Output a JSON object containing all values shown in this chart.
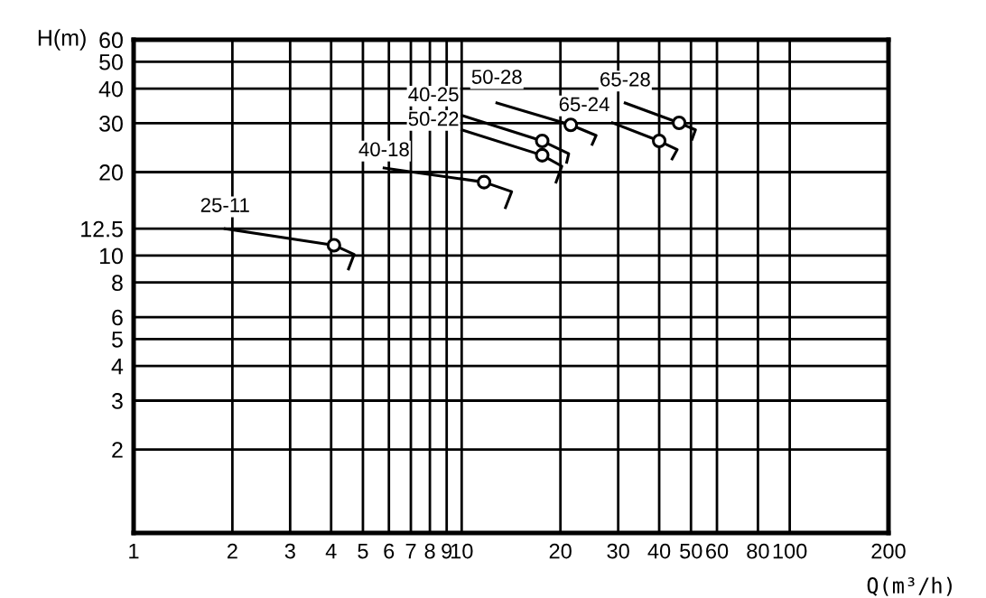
{
  "chart_data": {
    "type": "line",
    "xlabel": "Q(m³/h)",
    "ylabel": "H(m)",
    "log": "xy",
    "grid": true,
    "legend": false,
    "xlim": [
      1,
      200
    ],
    "xticks": [
      1,
      2,
      3,
      4,
      5,
      6,
      7,
      8,
      9,
      10,
      20,
      30,
      40,
      50,
      60,
      80,
      100,
      200
    ],
    "ylim": [
      1,
      60
    ],
    "yticks": [
      2,
      3,
      4,
      5,
      6,
      8,
      10,
      12.5,
      20,
      30,
      40,
      50,
      60
    ],
    "series": [
      {
        "name": "25-11",
        "color": "#000000",
        "marker": "none",
        "x": [
          1.9,
          4.08,
          4.7,
          4.52
        ],
        "values": [
          12.5,
          10.9,
          10.1,
          8.95
        ]
      },
      {
        "name": "40-18",
        "color": "#000000",
        "marker": "none",
        "x": [
          5.8,
          11.7,
          14.2,
          13.6
        ],
        "values": [
          20.7,
          18.4,
          17.0,
          14.9
        ]
      },
      {
        "name": "50-22",
        "color": "#000000",
        "marker": "none",
        "x": [
          10.0,
          17.6,
          20.2,
          19.4
        ],
        "values": [
          28.4,
          23.0,
          21.0,
          18.4
        ]
      },
      {
        "name": "40-25",
        "color": "#000000",
        "marker": "none",
        "x": [
          10.0,
          17.6,
          21.2,
          20.9
        ],
        "values": [
          32.0,
          25.9,
          23.3,
          21.7
        ]
      },
      {
        "name": "50-28",
        "color": "#000000",
        "marker": "none",
        "x": [
          12.8,
          21.5,
          25.7,
          25.0
        ],
        "values": [
          35.5,
          29.6,
          27.1,
          25.2
        ]
      },
      {
        "name": "65-24",
        "color": "#000000",
        "marker": "none",
        "x": [
          28.8,
          40.0,
          45.4,
          43.8
        ],
        "values": [
          30.1,
          25.9,
          24.1,
          22.3
        ]
      },
      {
        "name": "65-28",
        "color": "#000000",
        "marker": "none",
        "x": [
          31.5,
          46.0,
          51.6,
          50.4
        ],
        "values": [
          35.5,
          30.1,
          28.4,
          26.3
        ]
      },
      {
        "type": "scatter",
        "color": "#000000",
        "marker": "circle",
        "x": [
          4.08,
          11.7,
          17.6,
          17.6,
          21.5,
          40.0,
          46.0
        ],
        "values": [
          10.9,
          18.4,
          23.0,
          25.9,
          29.6,
          25.9,
          30.1
        ]
      }
    ]
  }
}
